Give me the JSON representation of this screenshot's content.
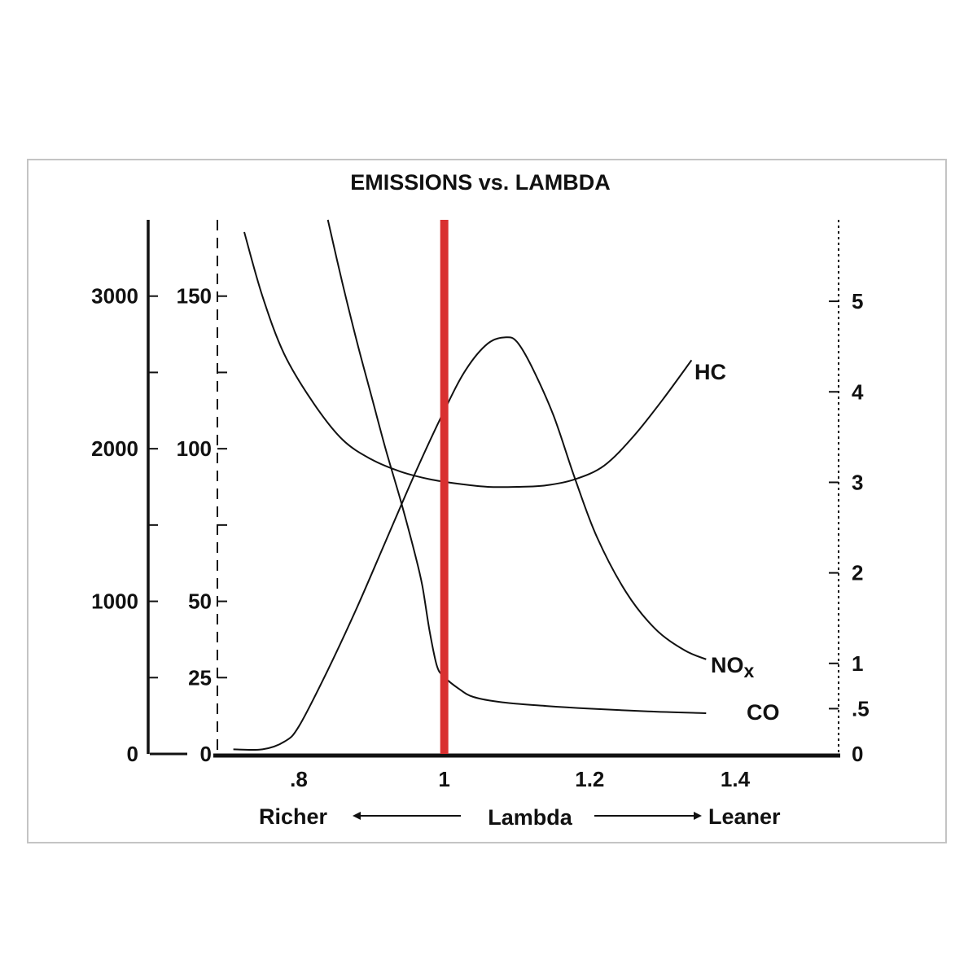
{
  "chart_data": {
    "type": "line",
    "title": "EMISSIONS vs. LAMBDA",
    "xlabel": "Lambda",
    "x_direction_labels": {
      "left": "Richer",
      "right": "Leaner"
    },
    "xlim": [
      0.7,
      1.55
    ],
    "x_ticks": [
      {
        "value": 0.8,
        "label": ".8"
      },
      {
        "value": 1.0,
        "label": "1"
      },
      {
        "value": 1.2,
        "label": "1.2"
      },
      {
        "value": 1.4,
        "label": "1.4"
      }
    ],
    "axes": {
      "nox_axis": {
        "side": "left-outer",
        "style": "solid",
        "ylim": [
          0,
          3500
        ],
        "ticks": [
          {
            "value": 0,
            "label": "0"
          },
          {
            "value": 500,
            "label": ""
          },
          {
            "value": 1000,
            "label": "1000"
          },
          {
            "value": 1500,
            "label": ""
          },
          {
            "value": 2000,
            "label": "2000"
          },
          {
            "value": 2500,
            "label": ""
          },
          {
            "value": 3000,
            "label": "3000"
          }
        ]
      },
      "hc_axis": {
        "side": "left-inner",
        "style": "dashed",
        "ylim": [
          0,
          175
        ],
        "ticks": [
          {
            "value": 0,
            "label": "0"
          },
          {
            "value": 25,
            "label": "25"
          },
          {
            "value": 50,
            "label": "50"
          },
          {
            "value": 75,
            "label": ""
          },
          {
            "value": 100,
            "label": "100"
          },
          {
            "value": 125,
            "label": ""
          },
          {
            "value": 150,
            "label": "150"
          }
        ]
      },
      "co_axis": {
        "side": "right",
        "style": "dotted",
        "ylim": [
          0,
          5.9
        ],
        "ticks": [
          {
            "value": 0,
            "label": "0"
          },
          {
            "value": 0.5,
            "label": ".5"
          },
          {
            "value": 1,
            "label": "1"
          },
          {
            "value": 2,
            "label": "2"
          },
          {
            "value": 3,
            "label": "3"
          },
          {
            "value": 4,
            "label": "4"
          },
          {
            "value": 5,
            "label": "5"
          }
        ]
      }
    },
    "series": [
      {
        "name": "HC",
        "axis": "hc_axis",
        "color": "#111111",
        "x": [
          0.725,
          0.75,
          0.78,
          0.82,
          0.86,
          0.9,
          0.94,
          0.98,
          1.02,
          1.06,
          1.1,
          1.14,
          1.18,
          1.22,
          1.26,
          1.3,
          1.34
        ],
        "y": [
          171,
          150,
          131,
          115,
          103,
          96.5,
          92.5,
          90,
          88.5,
          87.5,
          87.5,
          88,
          90,
          94.5,
          104,
          116,
          129
        ]
      },
      {
        "name": "NOx",
        "label_main": "NO",
        "label_sub": "x",
        "axis": "nox_axis",
        "color": "#111111",
        "x": [
          0.71,
          0.75,
          0.78,
          0.8,
          0.84,
          0.88,
          0.92,
          0.96,
          1.0,
          1.03,
          1.06,
          1.085,
          1.1,
          1.12,
          1.15,
          1.18,
          1.21,
          1.25,
          1.29,
          1.33,
          1.36
        ],
        "y": [
          30,
          30,
          80,
          180,
          550,
          960,
          1400,
          1840,
          2250,
          2520,
          2690,
          2730,
          2700,
          2540,
          2220,
          1800,
          1420,
          1060,
          820,
          680,
          620
        ]
      },
      {
        "name": "CO",
        "axis": "co_axis",
        "color": "#111111",
        "x": [
          0.84,
          0.86,
          0.88,
          0.9,
          0.92,
          0.94,
          0.96,
          0.97,
          0.98,
          0.99,
          1.0,
          1.02,
          1.04,
          1.08,
          1.14,
          1.2,
          1.28,
          1.36
        ],
        "y": [
          5.9,
          5.2,
          4.55,
          3.95,
          3.35,
          2.8,
          2.2,
          1.85,
          1.35,
          0.97,
          0.85,
          0.72,
          0.63,
          0.57,
          0.53,
          0.5,
          0.47,
          0.45
        ]
      }
    ],
    "reference_line": {
      "x": 1.0,
      "color": "#d93030"
    },
    "grid": false,
    "legend": "none"
  }
}
